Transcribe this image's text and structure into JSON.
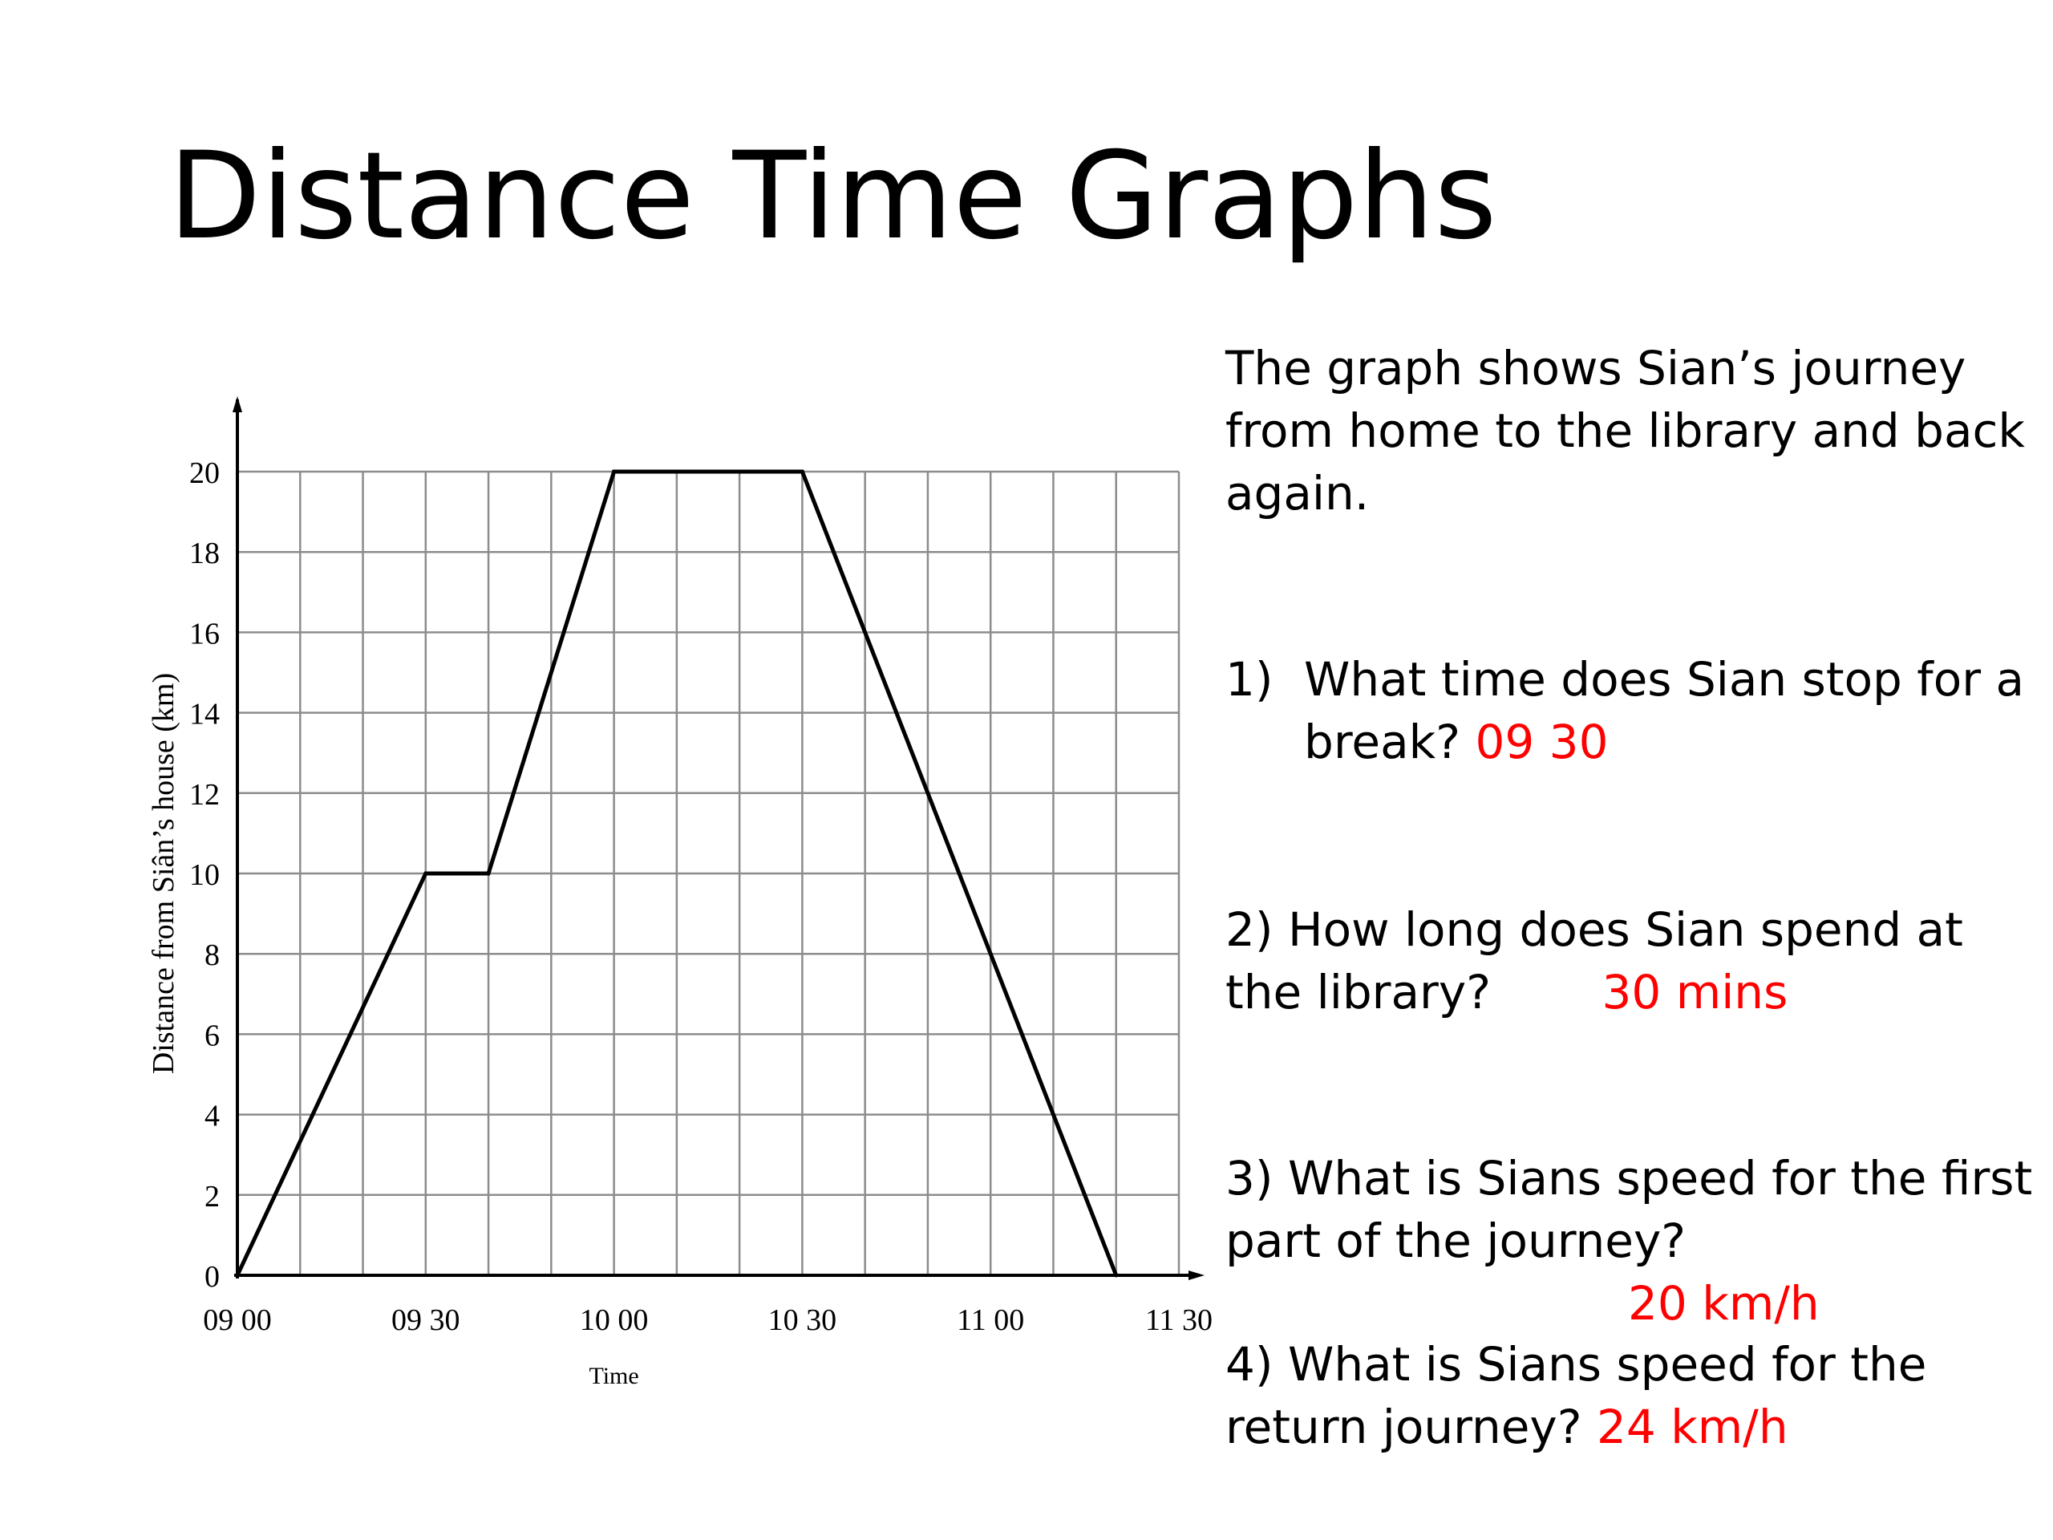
{
  "title": "Distance Time Graphs",
  "intro": "The graph shows Sian’s journey from home to the library and back again.",
  "questions": [
    {
      "number": "1)",
      "text": "What time does Sian stop for a break?",
      "answer": "09 30"
    },
    {
      "number": "2)",
      "text": "How long does Sian spend at the library?",
      "answer": "30 mins"
    },
    {
      "number": "3)",
      "text": "What is Sians speed for the first part of the journey?",
      "answer": "20 km/h"
    },
    {
      "number": "4)",
      "text": "What is Sians speed for the return journey?",
      "answer": "24 km/h"
    }
  ],
  "colors": {
    "answer": "#ff0000",
    "grid": "#8c8c8c",
    "line": "#000000"
  },
  "chart_data": {
    "type": "line",
    "xlabel": "Time",
    "ylabel": "Distance from Siân’s house (km)",
    "x_unit": "minutes after 09 00",
    "xlim": [
      0,
      150
    ],
    "ylim": [
      0,
      20
    ],
    "x_ticks": [
      {
        "value": 0,
        "label": "09 00"
      },
      {
        "value": 30,
        "label": "09 30"
      },
      {
        "value": 60,
        "label": "10 00"
      },
      {
        "value": 90,
        "label": "10 30"
      },
      {
        "value": 120,
        "label": "11 00"
      },
      {
        "value": 150,
        "label": "11 30"
      }
    ],
    "y_ticks": [
      0,
      2,
      4,
      6,
      8,
      10,
      12,
      14,
      16,
      18,
      20
    ],
    "grid": true,
    "x_grid_step": 10,
    "y_grid_step": 2,
    "series": [
      {
        "points": [
          [
            0,
            0
          ],
          [
            30,
            10
          ],
          [
            40,
            10
          ],
          [
            60,
            20
          ],
          [
            90,
            20
          ],
          [
            140,
            0
          ]
        ]
      }
    ]
  }
}
